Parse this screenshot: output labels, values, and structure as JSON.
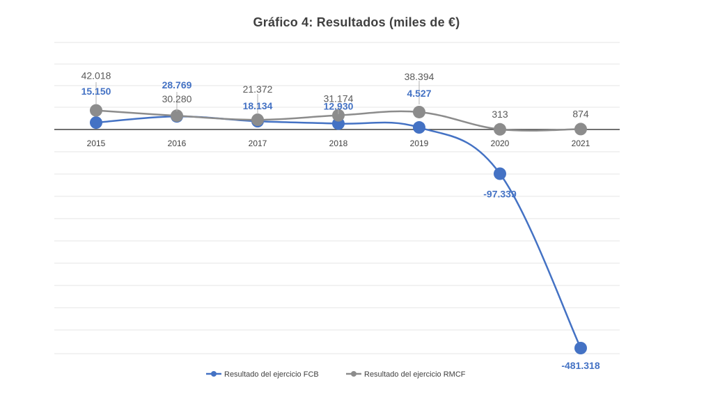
{
  "chart_data": {
    "type": "line",
    "title": "Gráfico 4: Resultados (miles de €)",
    "categories": [
      "2015",
      "2016",
      "2017",
      "2018",
      "2019",
      "2020",
      "2021"
    ],
    "series": [
      {
        "name": "Resultado del ejercicio FCB",
        "values": [
          15150,
          28769,
          18134,
          12930,
          4527,
          -97339,
          -481318
        ],
        "labels": [
          "15.150",
          "28.769",
          "18.134",
          "12.930",
          "4.527",
          "-97.339",
          "-481.318"
        ],
        "color": "#4472C4"
      },
      {
        "name": "Resultado del ejercicio RMCF",
        "values": [
          42018,
          30280,
          21372,
          31174,
          38394,
          313,
          874
        ],
        "labels": [
          "42.018",
          "30.280",
          "21.372",
          "31.174",
          "38.394",
          "313",
          "874"
        ],
        "color": "#8C8C8C"
      }
    ],
    "ylim": [
      -500000,
      200000
    ],
    "grid": true,
    "legend": "bottom",
    "xlabel": "",
    "ylabel": ""
  }
}
